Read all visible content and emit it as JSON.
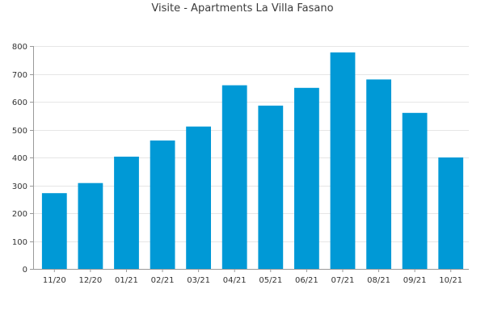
{
  "chart_data": {
    "type": "bar",
    "title": "Visite - Apartments La Villa Fasano",
    "xlabel": "",
    "ylabel": "",
    "categories": [
      "11/20",
      "12/20",
      "01/21",
      "02/21",
      "03/21",
      "04/21",
      "05/21",
      "06/21",
      "07/21",
      "08/21",
      "09/21",
      "10/21"
    ],
    "series": [
      {
        "values": [
          272,
          308,
          403,
          461,
          511,
          659,
          586,
          650,
          777,
          680,
          560,
          400
        ]
      }
    ],
    "ylim": [
      0,
      800
    ],
    "yticks": [
      0,
      100,
      200,
      300,
      400,
      500,
      600,
      700,
      800
    ],
    "grid": true,
    "legend": "none",
    "colors": {
      "bar": "#0099d6",
      "grid": "#e6e6e6",
      "axis": "#9a9a9a",
      "text": "#333333"
    }
  }
}
